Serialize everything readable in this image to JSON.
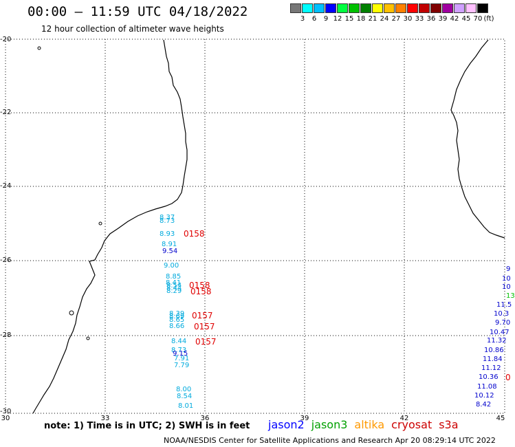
{
  "title": "00:00 – 11:59 UTC 04/18/2022",
  "subtitle": "12 hour collection of altimeter wave heights",
  "legend": {
    "colors": [
      "#777777",
      "#00ffff",
      "#00c0ff",
      "#0000ff",
      "#00ff40",
      "#00c000",
      "#008000",
      "#ffff00",
      "#ffc000",
      "#ff8000",
      "#ff0000",
      "#c00000",
      "#800000",
      "#a000a0",
      "#d0a0ff",
      "#ffc0ff",
      "#000000"
    ],
    "labels": [
      "3",
      "6",
      "9",
      "12",
      "15",
      "18",
      "21",
      "24",
      "27",
      "30",
      "33",
      "36",
      "39",
      "42",
      "45",
      "70"
    ],
    "unit": "(ft)"
  },
  "axes": {
    "y_labels": [
      "-20",
      "-22",
      "-24",
      "-26",
      "-28",
      "-30"
    ],
    "x_labels": [
      "30",
      "33",
      "36",
      "39",
      "42",
      "45"
    ]
  },
  "note": "note: 1) Time is in UTC; 2) SWH is in feet",
  "satellites": [
    {
      "name": "jason2",
      "color": "#0000ff"
    },
    {
      "name": "jason3",
      "color": "#00a000"
    },
    {
      "name": "altika",
      "color": "#ff9900"
    },
    {
      "name": "cryosat",
      "color": "#cc0000"
    },
    {
      "name": "s3a",
      "color": "#cc0000"
    }
  ],
  "footer": "NOAA/NESDIS Center for Satellite Applications and Research   Apr 20 08:29:14 UTC 2022",
  "obs_track1": [
    {
      "v": "8.37",
      "c": "#00aadd"
    },
    {
      "v": "8.73",
      "c": "#00aadd"
    },
    {
      "v": "8.93",
      "c": "#00aadd"
    },
    {
      "v": "8.91",
      "c": "#00aadd"
    },
    {
      "v": "9.54",
      "c": "#0000cc"
    },
    {
      "v": "9.00",
      "c": "#00aadd"
    },
    {
      "v": "8.85",
      "c": "#00aadd"
    },
    {
      "v": "8.41",
      "c": "#00aadd"
    },
    {
      "v": "8.54",
      "c": "#00aadd"
    },
    {
      "v": "8.44",
      "c": "#00aadd"
    },
    {
      "v": "8.29",
      "c": "#00aadd"
    },
    {
      "v": "8.39",
      "c": "#00aadd"
    },
    {
      "v": "8.69",
      "c": "#00aadd"
    },
    {
      "v": "8.65",
      "c": "#00aadd"
    },
    {
      "v": "8.66",
      "c": "#00aadd"
    },
    {
      "v": "8.44",
      "c": "#00aadd"
    },
    {
      "v": "8.73",
      "c": "#00aadd"
    },
    {
      "v": "9.15",
      "c": "#0000cc"
    },
    {
      "v": "7.91",
      "c": "#00aadd"
    },
    {
      "v": "7.79",
      "c": "#00aadd"
    },
    {
      "v": "8.00",
      "c": "#00aadd"
    },
    {
      "v": "8.54",
      "c": "#00aadd"
    },
    {
      "v": "8.01",
      "c": "#00aadd"
    }
  ],
  "times_track1": [
    "0158",
    "0158",
    "0158",
    "0157",
    "0157",
    "0157"
  ],
  "obs_track2": [
    {
      "v": "9",
      "c": "#0000cc"
    },
    {
      "v": "10",
      "c": "#0000cc"
    },
    {
      "v": "10",
      "c": "#0000cc"
    },
    {
      "v": "13",
      "c": "#00c000"
    },
    {
      "v": "11.5",
      "c": "#0000cc"
    },
    {
      "v": "10.3",
      "c": "#0000cc"
    },
    {
      "v": "9.70",
      "c": "#0000cc"
    },
    {
      "v": "10.47",
      "c": "#0000cc"
    },
    {
      "v": "11.32",
      "c": "#0000cc"
    },
    {
      "v": "10.86",
      "c": "#0000cc"
    },
    {
      "v": "11.84",
      "c": "#0000cc"
    },
    {
      "v": "11.12",
      "c": "#0000cc"
    },
    {
      "v": "10.36",
      "c": "#0000cc"
    },
    {
      "v": "11.08",
      "c": "#0000cc"
    },
    {
      "v": "10.12",
      "c": "#0000cc"
    },
    {
      "v": "8.42",
      "c": "#0000cc"
    }
  ],
  "time_track2_edge": "0"
}
